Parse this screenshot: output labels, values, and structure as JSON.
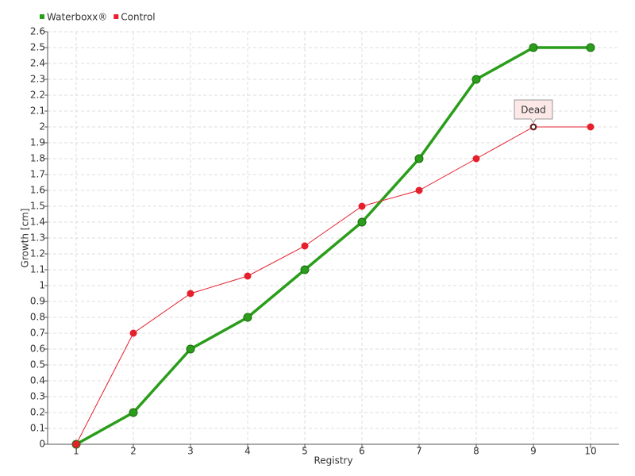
{
  "chart_data": {
    "type": "line",
    "categories": [
      "1",
      "2",
      "3",
      "4",
      "5",
      "6",
      "7",
      "8",
      "9",
      "10"
    ],
    "series": [
      {
        "name": "Waterboxx®",
        "color": "#2a9d1a",
        "values": [
          0,
          0.2,
          0.6,
          0.8,
          1.1,
          1.4,
          1.8,
          2.3,
          2.5,
          2.5
        ]
      },
      {
        "name": "Control",
        "color": "#e5202c",
        "values": [
          0,
          0.7,
          0.95,
          1.06,
          1.25,
          1.5,
          1.6,
          1.8,
          2.0,
          2.0
        ]
      }
    ],
    "xlabel": "Registry",
    "ylabel": "Growth [cm]",
    "ylim": [
      0,
      2.6
    ],
    "yticks": [
      0,
      0.1,
      0.2,
      0.3,
      0.4,
      0.5,
      0.6,
      0.7,
      0.8,
      0.9,
      1,
      1.1,
      1.2,
      1.3,
      1.4,
      1.5,
      1.6,
      1.7,
      1.8,
      1.9,
      2,
      2.1,
      2.2,
      2.3,
      2.4,
      2.5,
      2.6
    ],
    "grid": true,
    "legend": "top-left",
    "annotation": {
      "text": "Dead",
      "series": 1,
      "index": 8
    }
  }
}
